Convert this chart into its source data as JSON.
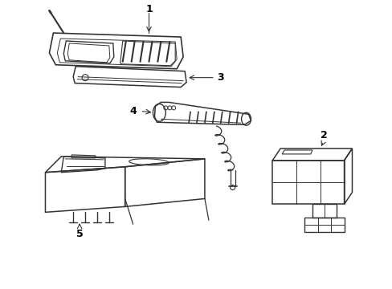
{
  "bg_color": "#ffffff",
  "line_color": "#333333",
  "line_width": 1.0,
  "label_fontsize": 9,
  "figsize": [
    4.89,
    3.6
  ],
  "dpi": 100
}
